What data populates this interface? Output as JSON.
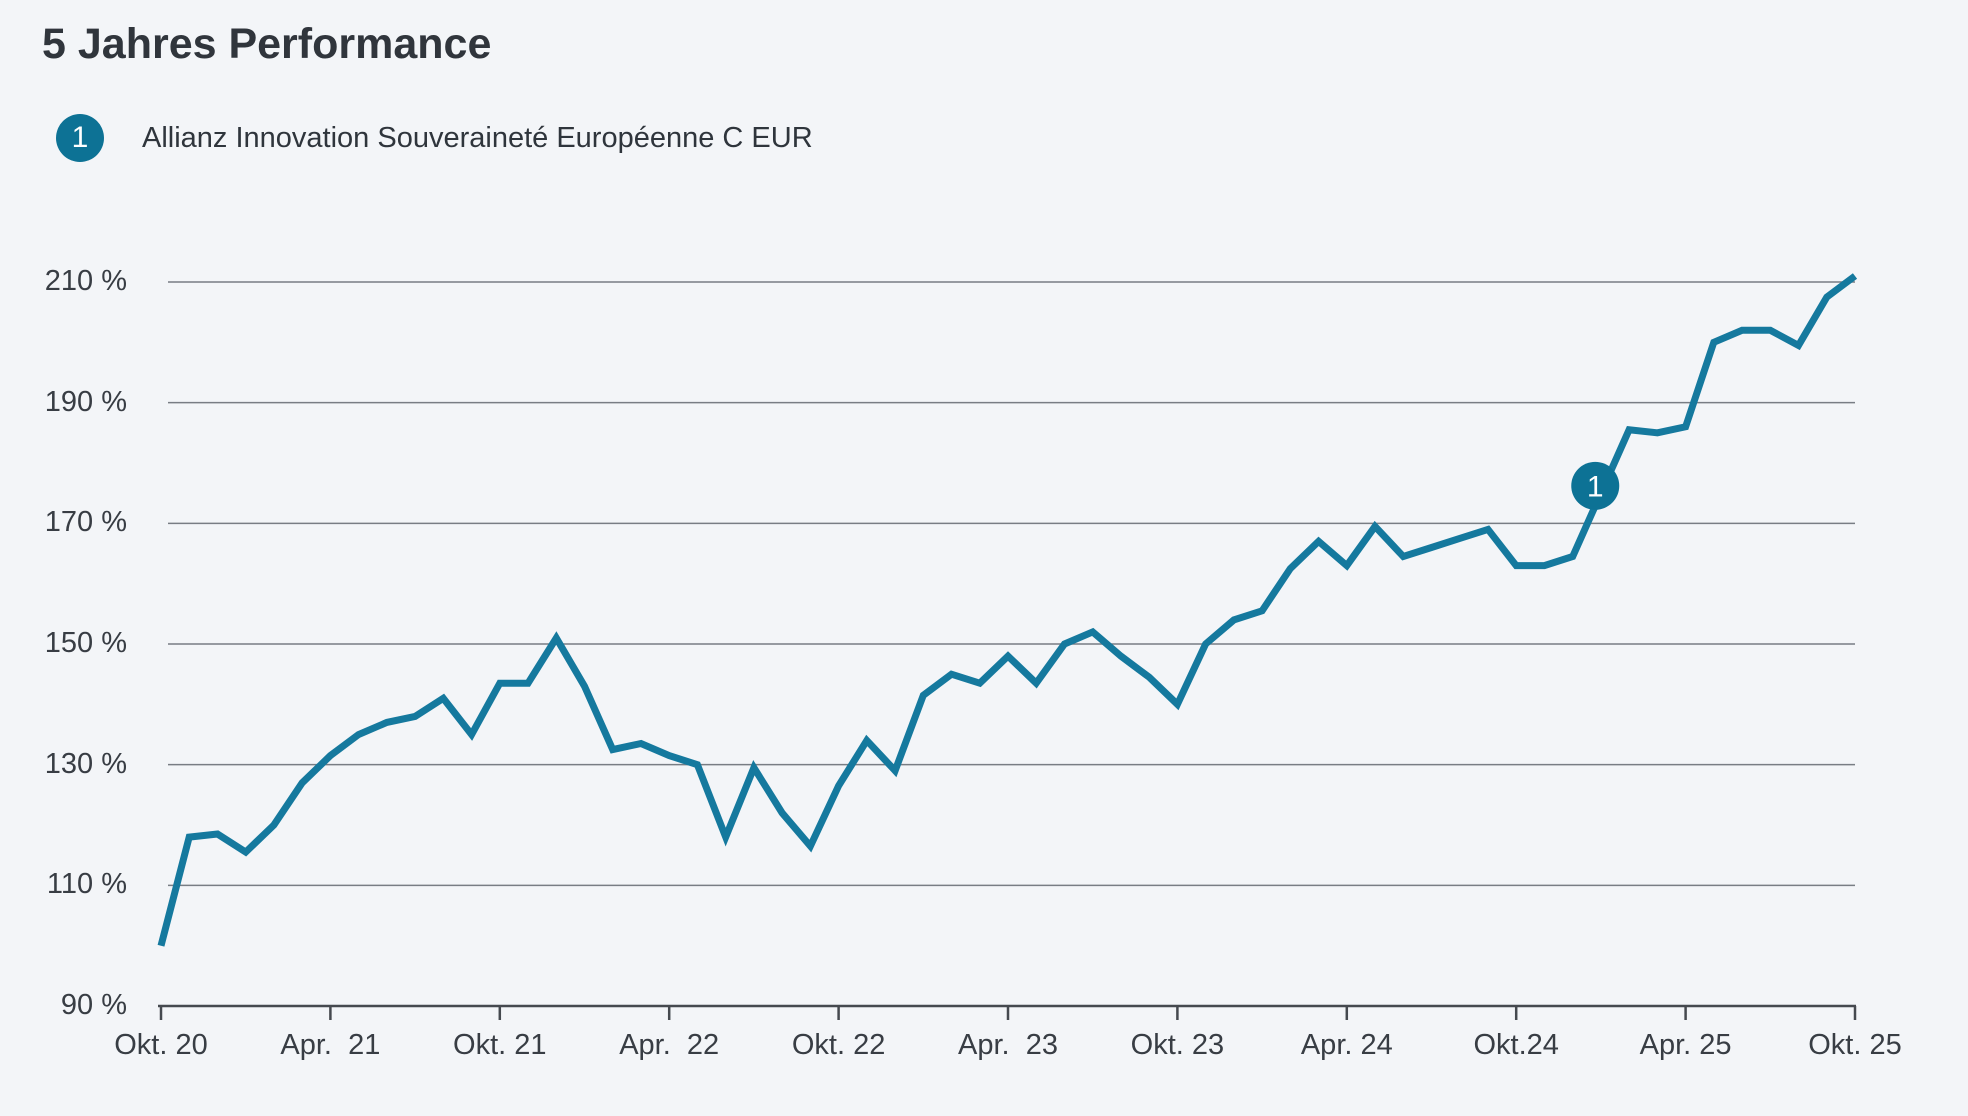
{
  "page": {
    "background": "#f3f5f8"
  },
  "header": {
    "title": "5 Jahres Performance"
  },
  "legend": {
    "marker_label": "1",
    "series_name": "Allianz Innovation Souveraineté Européenne C EUR"
  },
  "chart_data": {
    "type": "line",
    "title": "5 Jahres Performance",
    "x_unit": "month",
    "x_range_labels": [
      "Okt. 20",
      "Okt. 25"
    ],
    "categories": [
      "Okt. 20",
      "Apr.  21",
      "Okt. 21",
      "Apr.  22",
      "Okt. 22",
      "Apr.  23",
      "Okt. 23",
      "Apr. 24",
      "Okt.24",
      "Apr. 25",
      "Okt. 25"
    ],
    "category_month_indices": [
      0,
      6,
      12,
      18,
      24,
      30,
      36,
      42,
      48,
      54,
      60
    ],
    "y_ticks": [
      90,
      110,
      130,
      150,
      170,
      190,
      210
    ],
    "y_tick_suffix": " %",
    "ylim": [
      90,
      210
    ],
    "grid": "horizontal",
    "legend_position": "top-left",
    "series": [
      {
        "name": "Allianz Innovation Souveraineté Européenne C EUR",
        "color": "#15799e",
        "marker": {
          "label": "1",
          "at_month_index": 50.8
        },
        "values": [
          100,
          118,
          118.5,
          115.5,
          120,
          127,
          131.5,
          135,
          137,
          138,
          141,
          135,
          143.5,
          143.5,
          151,
          143,
          132.5,
          133.5,
          131.5,
          130,
          118,
          129.5,
          122,
          116.5,
          126.5,
          134,
          129,
          141.5,
          145,
          143.5,
          148,
          143.5,
          150,
          152,
          148,
          144.5,
          140,
          150,
          154,
          155.5,
          162.5,
          167,
          163,
          169.5,
          164.5,
          166,
          167.5,
          169,
          163,
          163,
          164.5,
          175,
          185.5,
          185,
          186,
          200,
          202,
          202,
          199.5,
          207.5,
          211
        ]
      }
    ],
    "colors": {
      "line": "#15799e",
      "marker_badge": "#0d7295",
      "marker_badge_text": "#ffffff",
      "gridline": "#787d84",
      "axis": "#45494f",
      "label_text": "#383d44",
      "background": "#f3f5f8"
    }
  }
}
